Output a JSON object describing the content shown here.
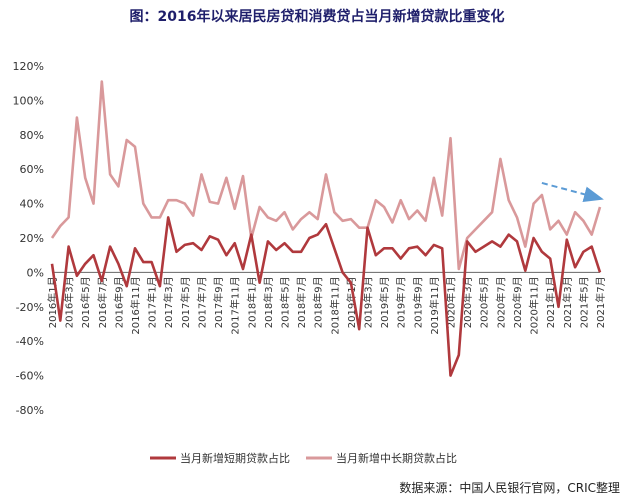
{
  "title": "图：2016年以来居民房贷和消费贷占当月新增贷款比重变化",
  "source": "数据来源：中国人民银行官网，CRIC整理",
  "colors": {
    "short_term": "#b0393d",
    "long_term": "#d9999b",
    "trend_arrow": "#5b9bd5",
    "zero_line": "#666666"
  },
  "chart_data": {
    "type": "line",
    "title": "图：2016年以来居民房贷和消费贷占当月新增贷款比重变化",
    "xlabel": "",
    "ylabel": "",
    "ylim": [
      -80,
      120
    ],
    "yticks": [
      -80,
      -60,
      -40,
      -20,
      0,
      20,
      40,
      60,
      80,
      100,
      120
    ],
    "ytick_labels": [
      "-80%",
      "-60%",
      "-40%",
      "-20%",
      "0%",
      "20%",
      "40%",
      "60%",
      "80%",
      "100%",
      "120%"
    ],
    "x_tick_labels": [
      "2016年1月",
      "2016年3月",
      "2016年5月",
      "2016年7月",
      "2016年9月",
      "2016年11月",
      "2017年1月",
      "2017年3月",
      "2017年5月",
      "2017年7月",
      "2017年9月",
      "2017年11月",
      "2018年1月",
      "2018年3月",
      "2018年5月",
      "2018年7月",
      "2018年9月",
      "2018年11月",
      "2019年1月",
      "2019年3月",
      "2019年5月",
      "2019年7月",
      "2019年9月",
      "2019年11月",
      "2020年1月",
      "2020年3月",
      "2020年5月",
      "2020年7月",
      "2020年9月",
      "2020年11月",
      "2021年1月",
      "2021年3月",
      "2021年5月",
      "2021年7月"
    ],
    "x": [
      "2016-01",
      "2016-02",
      "2016-03",
      "2016-04",
      "2016-05",
      "2016-06",
      "2016-07",
      "2016-08",
      "2016-09",
      "2016-10",
      "2016-11",
      "2016-12",
      "2017-01",
      "2017-02",
      "2017-03",
      "2017-04",
      "2017-05",
      "2017-06",
      "2017-07",
      "2017-08",
      "2017-09",
      "2017-10",
      "2017-11",
      "2017-12",
      "2018-01",
      "2018-02",
      "2018-03",
      "2018-04",
      "2018-05",
      "2018-06",
      "2018-07",
      "2018-08",
      "2018-09",
      "2018-10",
      "2018-11",
      "2018-12",
      "2019-01",
      "2019-02",
      "2019-03",
      "2019-04",
      "2019-05",
      "2019-06",
      "2019-07",
      "2019-08",
      "2019-09",
      "2019-10",
      "2019-11",
      "2019-12",
      "2020-01",
      "2020-02",
      "2020-03",
      "2020-04",
      "2020-05",
      "2020-06",
      "2020-07",
      "2020-08",
      "2020-09",
      "2020-10",
      "2020-11",
      "2020-12",
      "2021-01",
      "2021-02",
      "2021-03",
      "2021-04",
      "2021-05",
      "2021-06",
      "2021-07"
    ],
    "series": [
      {
        "name": "当月新增短期贷款占比",
        "values": [
          5,
          -28,
          15,
          -2,
          5,
          10,
          -5,
          15,
          5,
          -8,
          14,
          6,
          6,
          -8,
          32,
          12,
          16,
          17,
          13,
          21,
          19,
          10,
          17,
          2,
          22,
          -6,
          18,
          13,
          17,
          12,
          12,
          20,
          22,
          28,
          14,
          0,
          -6,
          -33,
          26,
          10,
          14,
          14,
          8,
          14,
          15,
          10,
          16,
          14,
          -60,
          -48,
          18,
          12,
          15,
          18,
          15,
          22,
          18,
          1,
          20,
          12,
          8,
          -20,
          19,
          3,
          12,
          15,
          0
        ]
      },
      {
        "name": "当月新增中长期贷款占比",
        "values": [
          20,
          27,
          32,
          90,
          55,
          40,
          111,
          57,
          50,
          77,
          73,
          40,
          32,
          32,
          42,
          42,
          40,
          33,
          57,
          41,
          40,
          55,
          37,
          56,
          20,
          38,
          32,
          30,
          35,
          25,
          31,
          35,
          31,
          57,
          35,
          30,
          31,
          26,
          26,
          42,
          38,
          29,
          42,
          31,
          36,
          30,
          55,
          33,
          78,
          2,
          20,
          25,
          30,
          35,
          66,
          42,
          32,
          15,
          40,
          45,
          25,
          30,
          22,
          35,
          30,
          22,
          38
        ]
      }
    ],
    "legend": {
      "position": "bottom-center"
    },
    "grid": false,
    "annotations": [
      {
        "type": "arrow",
        "from_x": "2020-12",
        "from_y": 52,
        "to_x": "2021-07",
        "to_y": 43
      }
    ]
  }
}
